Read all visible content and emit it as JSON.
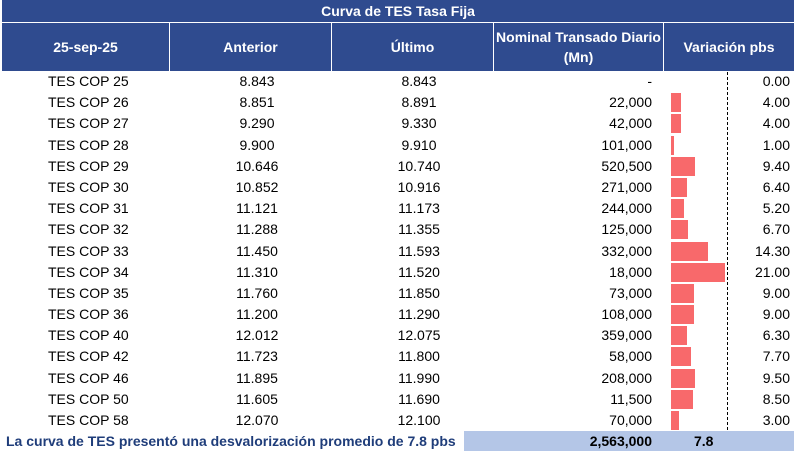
{
  "title": "Curva de TES Tasa Fija",
  "headers": {
    "date": "25-sep-25",
    "anterior": "Anterior",
    "ultimo": "Último",
    "nominal": "Nominal Transado Diario (Mn)",
    "variacion": "Variación pbs"
  },
  "rows": [
    {
      "name": "TES COP 25",
      "anterior": "8.843",
      "ultimo": "8.843",
      "nominal": "-",
      "variacion": "0.00",
      "var_value": 0.0
    },
    {
      "name": "TES COP 26",
      "anterior": "8.851",
      "ultimo": "8.891",
      "nominal": "22,000",
      "variacion": "4.00",
      "var_value": 4.0
    },
    {
      "name": "TES COP 27",
      "anterior": "9.290",
      "ultimo": "9.330",
      "nominal": "42,000",
      "variacion": "4.00",
      "var_value": 4.0
    },
    {
      "name": "TES COP 28",
      "anterior": "9.900",
      "ultimo": "9.910",
      "nominal": "101,000",
      "variacion": "1.00",
      "var_value": 1.0
    },
    {
      "name": "TES COP 29",
      "anterior": "10.646",
      "ultimo": "10.740",
      "nominal": "520,500",
      "variacion": "9.40",
      "var_value": 9.4
    },
    {
      "name": "TES COP 30",
      "anterior": "10.852",
      "ultimo": "10.916",
      "nominal": "271,000",
      "variacion": "6.40",
      "var_value": 6.4
    },
    {
      "name": "TES COP 31",
      "anterior": "11.121",
      "ultimo": "11.173",
      "nominal": "244,000",
      "variacion": "5.20",
      "var_value": 5.2
    },
    {
      "name": "TES COP 32",
      "anterior": "11.288",
      "ultimo": "11.355",
      "nominal": "125,000",
      "variacion": "6.70",
      "var_value": 6.7
    },
    {
      "name": "TES COP 33",
      "anterior": "11.450",
      "ultimo": "11.593",
      "nominal": "332,000",
      "variacion": "14.30",
      "var_value": 14.3
    },
    {
      "name": "TES COP 34",
      "anterior": "11.310",
      "ultimo": "11.520",
      "nominal": "18,000",
      "variacion": "21.00",
      "var_value": 21.0
    },
    {
      "name": "TES COP 35",
      "anterior": "11.760",
      "ultimo": "11.850",
      "nominal": "73,000",
      "variacion": "9.00",
      "var_value": 9.0
    },
    {
      "name": "TES COP 36",
      "anterior": "11.200",
      "ultimo": "11.290",
      "nominal": "108,000",
      "variacion": "9.00",
      "var_value": 9.0
    },
    {
      "name": "TES COP 40",
      "anterior": "12.012",
      "ultimo": "12.075",
      "nominal": "359,000",
      "variacion": "6.30",
      "var_value": 6.3
    },
    {
      "name": "TES COP 42",
      "anterior": "11.723",
      "ultimo": "11.800",
      "nominal": "58,000",
      "variacion": "7.70",
      "var_value": 7.7
    },
    {
      "name": "TES COP 46",
      "anterior": "11.895",
      "ultimo": "11.990",
      "nominal": "208,000",
      "variacion": "9.50",
      "var_value": 9.5
    },
    {
      "name": "TES COP 50",
      "anterior": "11.605",
      "ultimo": "11.690",
      "nominal": "11,500",
      "variacion": "8.50",
      "var_value": 8.5
    },
    {
      "name": "TES COP 58",
      "anterior": "12.070",
      "ultimo": "12.100",
      "nominal": "70,000",
      "variacion": "3.00",
      "var_value": 3.0
    }
  ],
  "footer": {
    "text": "La curva de TES presentó una desvalorización promedio de 7.8 pbs",
    "total_nominal": "2,563,000",
    "avg_variacion": "7.8"
  },
  "colors": {
    "header_bg": "#2f4b8f",
    "bar": "#f8696b",
    "footer_bg": "#b4c6e7",
    "footer_text": "#1f3d7a"
  }
}
